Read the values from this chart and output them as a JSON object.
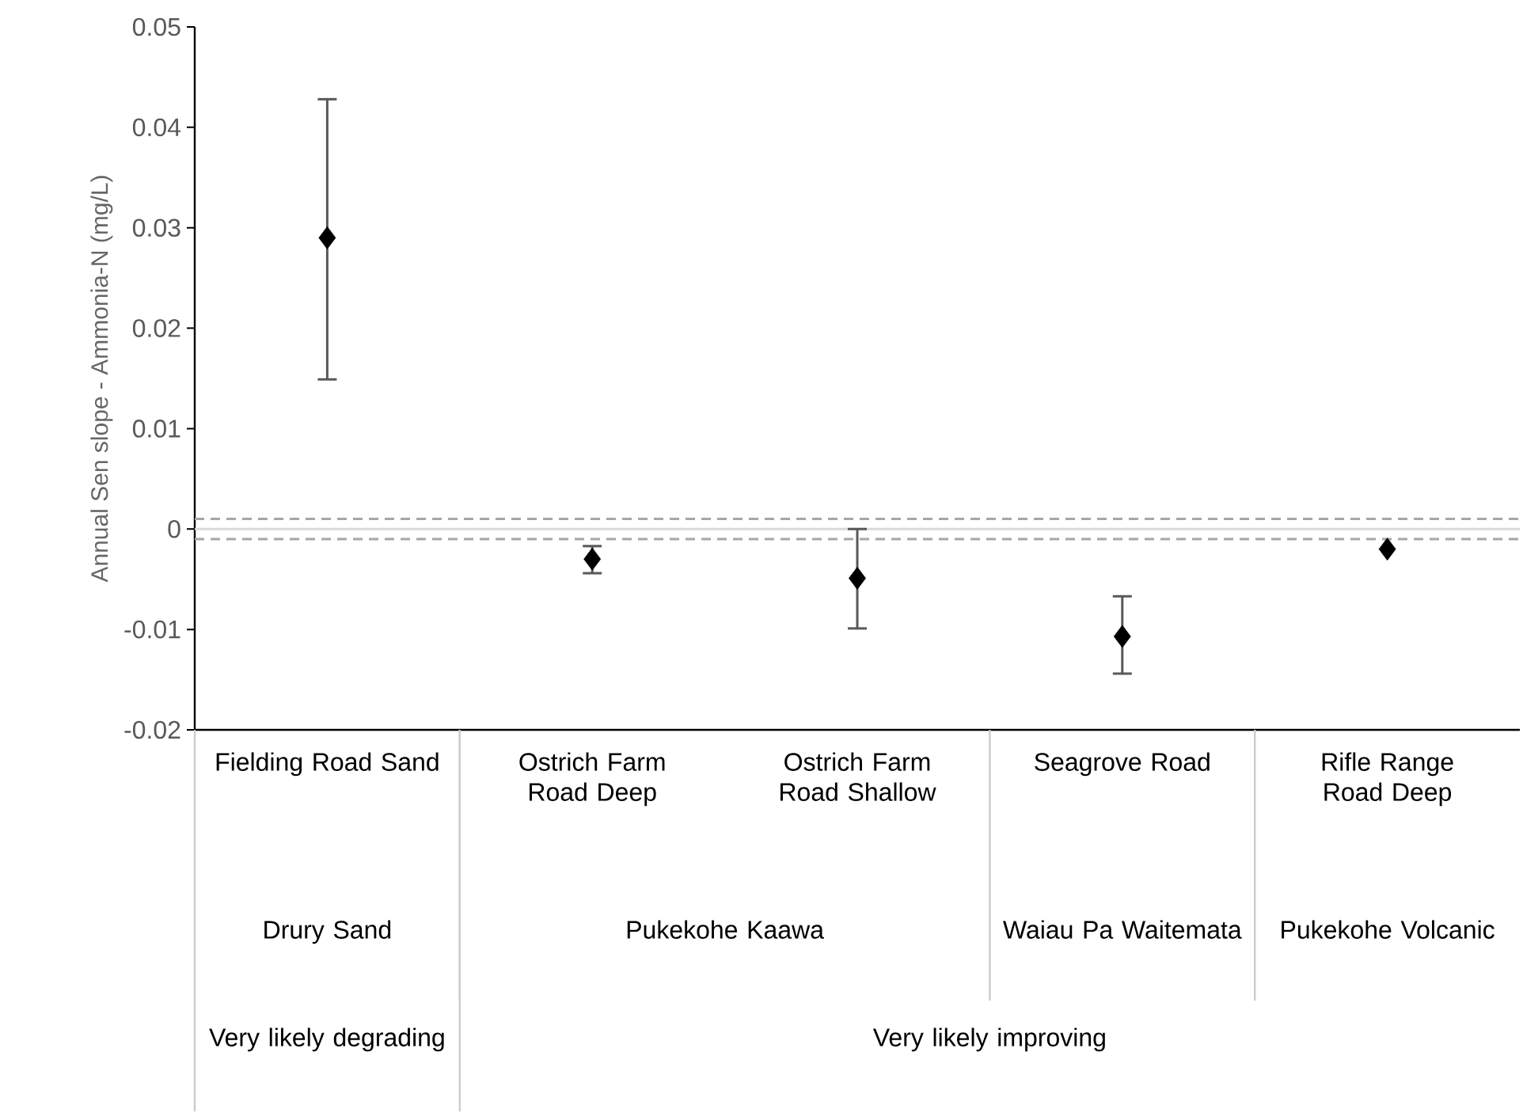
{
  "chart_data": {
    "type": "scatter",
    "ylabel": "Annual Sen slope - Ammonia-N (mg/L)",
    "categories": [
      "Fielding Road Sand",
      "Ostrich Farm Road Deep",
      "Ostrich Farm Road Shallow",
      "Seagrove Road",
      "Rifle Range Road Deep"
    ],
    "series": [
      {
        "color": "#000000",
        "values": [
          0.029,
          -0.003,
          -0.0049,
          -0.0107,
          -0.002
        ],
        "errors": [
          [
            0.0149,
            0.0428
          ],
          [
            -0.0044,
            -0.0017
          ],
          [
            -0.0099,
            0
          ],
          [
            -0.0144,
            -0.0067
          ],
          null
        ]
      }
    ],
    "marker": "diamond",
    "ylim": [
      -0.02,
      0.05
    ],
    "yticks": [
      -0.02,
      -0.01,
      0,
      0.01,
      0.02,
      0.03,
      0.04,
      0.05
    ],
    "ref_lines": [
      {
        "axis": "y",
        "value": 0,
        "color": "#d9d9d9",
        "line_style": "solid"
      },
      {
        "axis": "y",
        "value": 0.001,
        "color": "#a6a6a6",
        "line_style": "dashed"
      },
      {
        "axis": "y",
        "value": -0.001,
        "color": "#a6a6a6",
        "line_style": "dashed"
      }
    ],
    "annotations": [
      "Drury Sand",
      "Pukekohe Kaawa",
      "Waiau Pa Waitemata",
      "Pukekohe Volcanic",
      "Very likely degrading",
      "Very likely improving"
    ]
  }
}
